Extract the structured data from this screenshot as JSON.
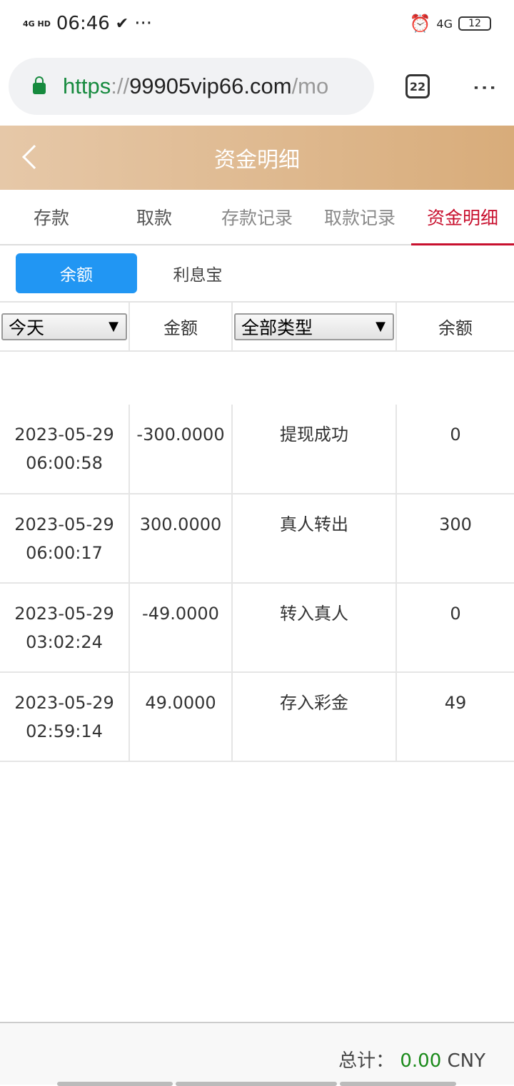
{
  "status": {
    "network": "4G HD",
    "time": "06:46",
    "right_network": "4G",
    "battery": "12"
  },
  "browser": {
    "url_scheme": "https",
    "url_sep": "://",
    "url_host": "99905vip66.com",
    "url_rest": "/mo",
    "tab_count": "22"
  },
  "header": {
    "title": "资金明细"
  },
  "nav_tabs": [
    {
      "label": "存款"
    },
    {
      "label": "取款"
    },
    {
      "label": "存款记录"
    },
    {
      "label": "取款记录"
    },
    {
      "label": "资金明细"
    }
  ],
  "sub_tabs": [
    {
      "label": "余额"
    },
    {
      "label": "利息宝"
    }
  ],
  "table": {
    "date_filter": "今天",
    "col_amount": "金额",
    "type_filter": "全部类型",
    "col_balance": "余额",
    "rows": [
      {
        "date": "2023-05-29",
        "time": "06:00:58",
        "amount": "-300.0000",
        "type": "提现成功",
        "balance": "0"
      },
      {
        "date": "2023-05-29",
        "time": "06:00:17",
        "amount": "300.0000",
        "type": "真人转出",
        "balance": "300"
      },
      {
        "date": "2023-05-29",
        "time": "03:02:24",
        "amount": "-49.0000",
        "type": "转入真人",
        "balance": "0"
      },
      {
        "date": "2023-05-29",
        "time": "02:59:14",
        "amount": "49.0000",
        "type": "存入彩金",
        "balance": "49"
      }
    ]
  },
  "footer": {
    "total_label": "总计：",
    "total_amount": "0.00",
    "currency": "CNY"
  },
  "colors": {
    "accent": "#c8102e",
    "button": "#2196f3",
    "total": "#1a8a1a"
  }
}
